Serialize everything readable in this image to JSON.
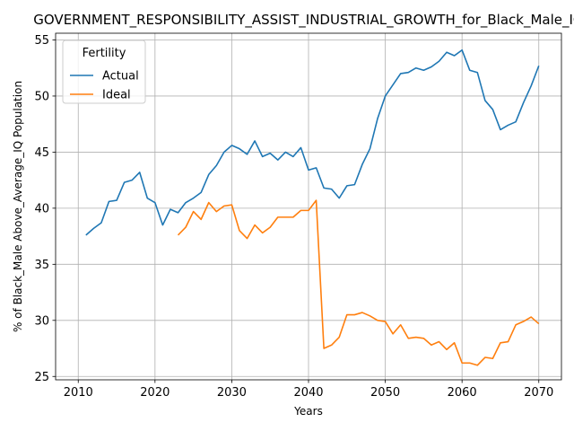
{
  "chart_data": {
    "type": "line",
    "title": "GOVERNMENT_RESPONSIBILITY_ASSIST_INDUSTRIAL_GROWTH_for_Black_Male_IQ",
    "xlabel": "Years",
    "ylabel": "% of Black_Male Above_Average_IQ Population",
    "xlim": [
      2007.05,
      2072.95
    ],
    "ylim": [
      24.7,
      55.6
    ],
    "xticks": [
      2010,
      2020,
      2030,
      2040,
      2050,
      2060,
      2070
    ],
    "yticks": [
      25,
      30,
      35,
      40,
      45,
      50,
      55
    ],
    "grid": true,
    "legend": {
      "title": "Fertility",
      "position": "top-left"
    },
    "series": [
      {
        "name": "Actual",
        "color": "#1f77b4",
        "x": [
          2011,
          2012,
          2013,
          2014,
          2015,
          2016,
          2017,
          2018,
          2019,
          2020,
          2021,
          2022,
          2023,
          2024,
          2025,
          2026,
          2027,
          2028,
          2029,
          2030,
          2031,
          2032,
          2033,
          2034,
          2035,
          2036,
          2037,
          2038,
          2039,
          2040,
          2041,
          2042,
          2043,
          2044,
          2045,
          2046,
          2047,
          2048,
          2049,
          2050,
          2051,
          2052,
          2053,
          2054,
          2055,
          2056,
          2057,
          2058,
          2059,
          2060,
          2061,
          2062,
          2063,
          2064,
          2065,
          2066,
          2067,
          2068,
          2069,
          2070
        ],
        "values": [
          37.6,
          38.2,
          38.7,
          40.6,
          40.7,
          42.3,
          42.5,
          43.2,
          40.9,
          40.5,
          38.5,
          39.9,
          39.6,
          40.5,
          40.9,
          41.4,
          43.0,
          43.8,
          45.0,
          45.6,
          45.3,
          44.8,
          46.0,
          44.6,
          44.9,
          44.3,
          45.0,
          44.6,
          45.4,
          43.4,
          43.6,
          41.8,
          41.7,
          40.9,
          42.0,
          42.1,
          43.9,
          45.3,
          48.0,
          50.0,
          51.0,
          52.0,
          52.1,
          52.5,
          52.3,
          52.6,
          53.1,
          53.9,
          53.6,
          54.1,
          52.3,
          52.1,
          49.6,
          48.8,
          47.0,
          47.4,
          47.7,
          49.4,
          50.9,
          52.7
        ]
      },
      {
        "name": "Ideal",
        "color": "#ff7f0e",
        "x": [
          2023,
          2024,
          2025,
          2026,
          2027,
          2028,
          2029,
          2030,
          2031,
          2032,
          2033,
          2034,
          2035,
          2036,
          2037,
          2038,
          2039,
          2040,
          2041,
          2042,
          2043,
          2044,
          2045,
          2046,
          2047,
          2048,
          2049,
          2050,
          2051,
          2052,
          2053,
          2054,
          2055,
          2056,
          2057,
          2058,
          2059,
          2060,
          2061,
          2062,
          2063,
          2064,
          2065,
          2066,
          2067,
          2068,
          2069,
          2070
        ],
        "values": [
          37.6,
          38.3,
          39.7,
          39.0,
          40.5,
          39.7,
          40.2,
          40.3,
          38.0,
          37.3,
          38.5,
          37.8,
          38.3,
          39.2,
          39.2,
          39.2,
          39.8,
          39.8,
          40.7,
          27.5,
          27.8,
          28.5,
          30.5,
          30.5,
          30.7,
          30.4,
          30.0,
          29.9,
          28.8,
          29.6,
          28.4,
          28.5,
          28.4,
          27.8,
          28.1,
          27.4,
          28.0,
          26.2,
          26.2,
          26.0,
          26.7,
          26.6,
          28.0,
          28.1,
          29.6,
          29.9,
          30.3,
          29.7
        ]
      }
    ]
  }
}
